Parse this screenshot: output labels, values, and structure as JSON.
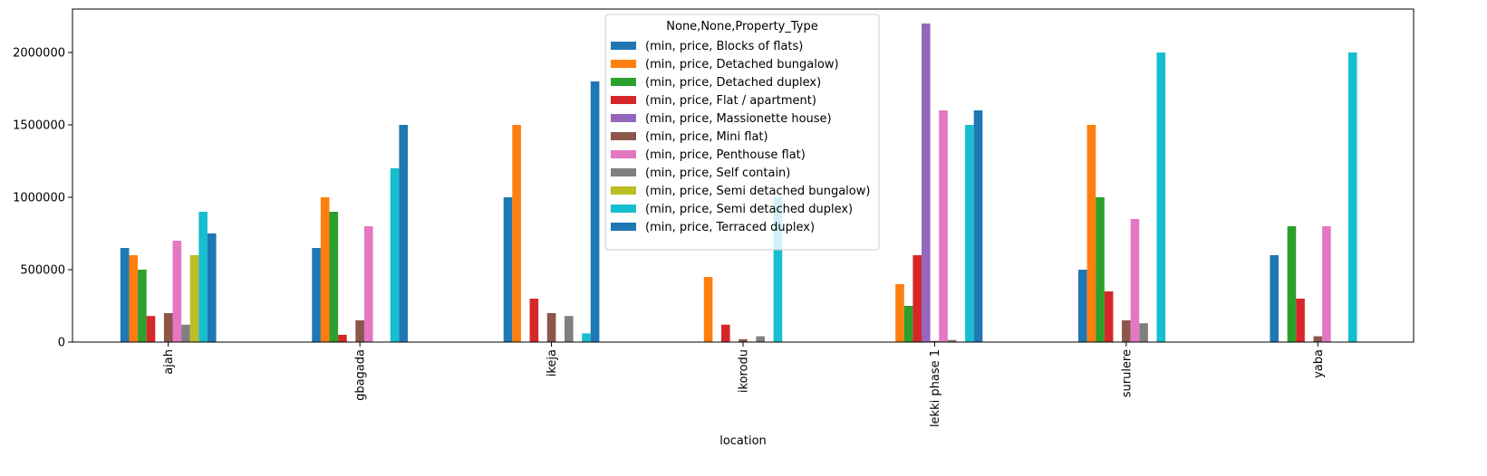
{
  "chart_data": {
    "type": "bar",
    "title": "",
    "xlabel": "location",
    "ylabel": "",
    "ylim": [
      0,
      2300000
    ],
    "yticks": [
      0,
      500000,
      1000000,
      1500000,
      2000000
    ],
    "ytick_labels": [
      "0",
      "500000",
      "1000000",
      "1500000",
      "2000000"
    ],
    "grid": false,
    "legend": {
      "title": "None,None,Property_Type",
      "placement": "top-center"
    },
    "categories": [
      "ajah",
      "gbagada",
      "ikeja",
      "ikorodu",
      "lekki phase 1",
      "surulere",
      "yaba"
    ],
    "series": [
      {
        "name": "(min, price, Blocks of flats)",
        "color": "#1f77b4",
        "values": [
          650000,
          650000,
          1000000,
          null,
          null,
          500000,
          600000
        ]
      },
      {
        "name": "(min, price, Detached bungalow)",
        "color": "#ff7f0e",
        "values": [
          600000,
          1000000,
          1500000,
          450000,
          400000,
          1500000,
          null
        ]
      },
      {
        "name": "(min, price, Detached duplex)",
        "color": "#2ca02c",
        "values": [
          500000,
          900000,
          null,
          null,
          250000,
          1000000,
          800000
        ]
      },
      {
        "name": "(min, price, Flat / apartment)",
        "color": "#d62728",
        "values": [
          180000,
          50000,
          300000,
          120000,
          600000,
          350000,
          300000
        ]
      },
      {
        "name": "(min, price, Massionette house)",
        "color": "#9467bd",
        "values": [
          null,
          null,
          null,
          null,
          2200000,
          null,
          null
        ]
      },
      {
        "name": "(min, price, Mini flat)",
        "color": "#8c564b",
        "values": [
          200000,
          150000,
          200000,
          20000,
          8000,
          150000,
          40000
        ]
      },
      {
        "name": "(min, price, Penthouse flat)",
        "color": "#e377c2",
        "values": [
          700000,
          800000,
          null,
          null,
          1600000,
          850000,
          800000
        ]
      },
      {
        "name": "(min, price, Self contain)",
        "color": "#7f7f7f",
        "values": [
          120000,
          null,
          180000,
          40000,
          15000,
          130000,
          null
        ]
      },
      {
        "name": "(min, price, Semi detached bungalow)",
        "color": "#bcbd22",
        "values": [
          600000,
          null,
          null,
          null,
          null,
          null,
          null
        ]
      },
      {
        "name": "(min, price, Semi detached duplex)",
        "color": "#17becf",
        "values": [
          900000,
          1200000,
          60000,
          1000000,
          1500000,
          2000000,
          2000000
        ]
      },
      {
        "name": "(min, price, Terraced duplex)",
        "color": "#1f77b4",
        "values": [
          750000,
          1500000,
          1800000,
          null,
          1600000,
          null,
          null
        ]
      }
    ]
  }
}
